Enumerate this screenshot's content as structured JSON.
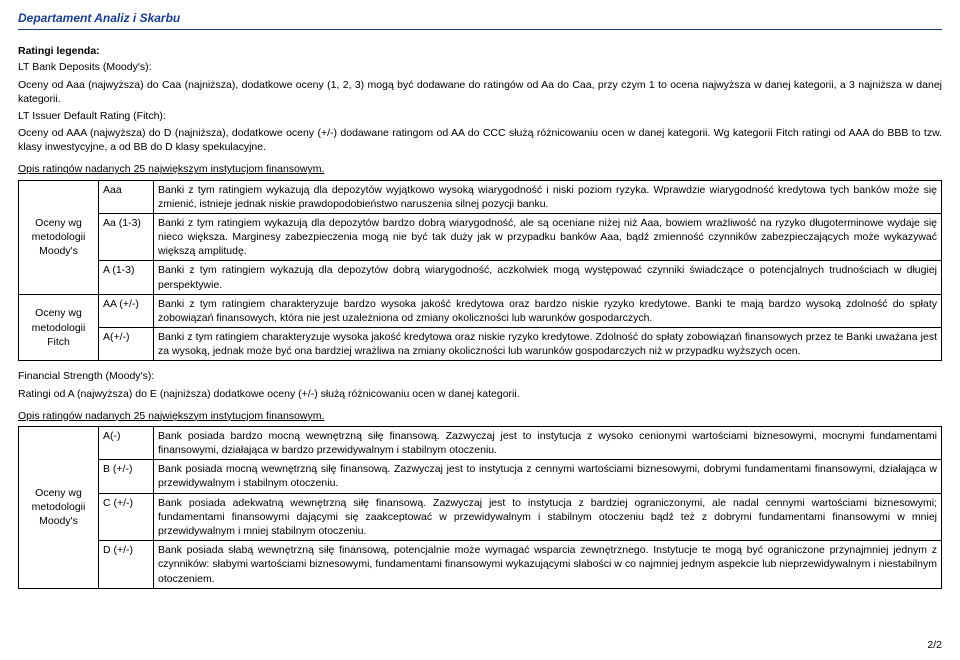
{
  "header": "Departament Analiz i Skarbu",
  "legend_title": "Ratingi legenda:",
  "lt_bank_title": "LT Bank Deposits (Moody's):",
  "lt_bank_text": "Oceny od Aaa (najwyższa) do Caa (najniższa), dodatkowe oceny (1, 2, 3) mogą być dodawane do ratingów od Aa do Caa, przy czym 1 to ocena najwyższa w danej kategorii, a 3 najniższa w danej kategorii.",
  "lt_issuer_title": "LT Issuer Default Rating (Fitch):",
  "lt_issuer_text": "Oceny od AAA (najwyższa) do D (najniższa), dodatkowe oceny (+/-) dodawane ratingom od AA do CCC służą różnicowaniu ocen w danej kategorii. Wg kategorii Fitch ratingi od AAA do BBB to tzw. klasy inwestycyjne, a od BB do D klasy spekulacyjne.",
  "opis_label": "Opis ratingów nadanych 25 największym instytucjom finansowym.",
  "table1": {
    "group1_label": "Oceny wg metodologii Moody's",
    "group2_label": "Oceny wg metodologii Fitch",
    "rows": [
      {
        "code": "Aaa",
        "desc": "Banki z tym ratingiem wykazują dla depozytów wyjątkowo wysoką wiarygodność i niski poziom ryzyka. Wprawdzie wiarygodność kredytowa tych banków może się zmienić, istnieje jednak niskie prawdopodobieństwo naruszenia silnej pozycji banku."
      },
      {
        "code": "Aa (1-3)",
        "desc": "Banki z tym ratingiem wykazują dla depozytów bardzo dobrą wiarygodność, ale są oceniane niżej niż Aaa, bowiem wrażliwość na ryzyko długoterminowe wydaje się nieco większa. Marginesy zabezpieczenia mogą nie być tak duży jak w przypadku banków Aaa, bądź zmienność czynników zabezpieczających może wykazywać większą amplitudę."
      },
      {
        "code": "A (1-3)",
        "desc": "Banki z tym ratingiem wykazują dla depozytów dobrą wiarygodność, aczkolwiek mogą występować czynniki świadczące o potencjalnych trudnościach w długiej perspektywie."
      },
      {
        "code": "AA (+/-)",
        "desc": "Banki z tym ratingiem charakteryzuje bardzo wysoka jakość kredytowa oraz bardzo niskie ryzyko kredytowe. Banki te mają bardzo wysoką zdolność do spłaty zobowiązań finansowych, która nie jest uzależniona od zmiany okoliczności lub warunków gospodarczych."
      },
      {
        "code": "A(+/-)",
        "desc": "Banki z tym ratingiem charakteryzuje wysoka jakość kredytowa oraz niskie ryzyko kredytowe. Zdolność do spłaty zobowiązań finansowych przez te Banki uważana jest za wysoką, jednak może być ona bardziej wrażliwa na zmiany okoliczności lub warunków gospodarczych niż w przypadku wyższych ocen."
      }
    ]
  },
  "fs_title": "Financial Strength (Moody's):",
  "fs_text": "Ratingi od A (najwyższa) do E (najniższa) dodatkowe oceny (+/-) służą różnicowaniu ocen w danej kategorii.",
  "table2": {
    "group_label": "Oceny wg metodologii Moody's",
    "rows": [
      {
        "code": "A(-)",
        "desc": "Bank posiada bardzo mocną wewnętrzną siłę finansową. Zazwyczaj jest to instytucja z wysoko cenionymi wartościami biznesowymi, mocnymi fundamentami finansowymi, działająca w bardzo przewidywalnym i stabilnym otoczeniu."
      },
      {
        "code": "B (+/-)",
        "desc": "Bank posiada mocną wewnętrzną siłę finansową. Zazwyczaj jest to instytucja z cennymi wartościami biznesowymi, dobrymi fundamentami finansowymi, działająca w przewidywalnym i stabilnym otoczeniu."
      },
      {
        "code": "C (+/-)",
        "desc": "Bank posiada adekwatną wewnętrzną siłę finansową. Zazwyczaj jest to instytucja z bardziej ograniczonymi, ale nadal cennymi wartościami biznesowymi; fundamentami finansowymi dającymi się zaakceptować w przewidywalnym i stabilnym otoczeniu bądź też z dobrymi fundamentami finansowymi w mniej przewidywalnym i mniej stabilnym otoczeniu."
      },
      {
        "code": "D (+/-)",
        "desc": "Bank posiada słabą wewnętrzną siłę finansową, potencjalnie może wymagać wsparcia zewnętrznego. Instytucje te mogą być ograniczone przynajmniej jednym z czynników: słabymi wartościami biznesowymi, fundamentami finansowymi wykazującymi słabości w co najmniej jednym aspekcie lub nieprzewidywalnym i niestabilnym otoczeniem."
      }
    ]
  },
  "page_num": "2/2"
}
